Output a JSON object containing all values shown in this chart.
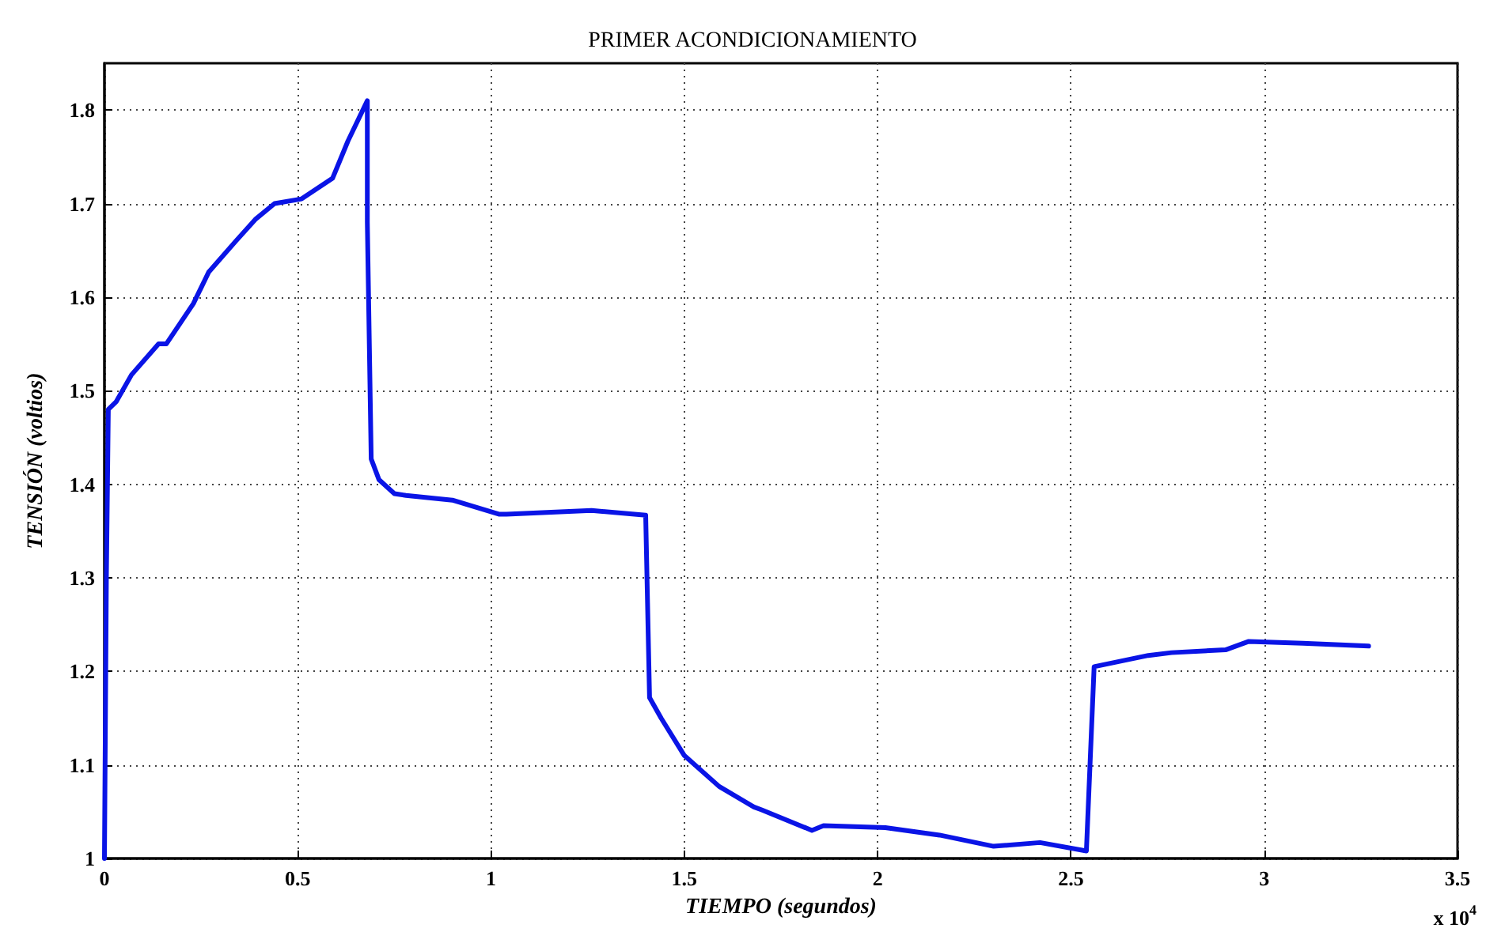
{
  "chart_data": {
    "type": "line",
    "title": "PRIMER ACONDICIONAMIENTO",
    "xlabel": "TIEMPO (segundos)",
    "ylabel": "TENSIÓN (voltios)",
    "annotations": [
      "x 10$^{4}$"
    ],
    "series": [
      {
        "color": "#0a14e6",
        "x": [
          0,
          0.005,
          0.01,
          0.03,
          0.07,
          0.14,
          0.16,
          0.23,
          0.27,
          0.34,
          0.39,
          0.44,
          0.51,
          0.59,
          0.63,
          0.68,
          0.68,
          0.69,
          0.71,
          0.75,
          0.78,
          0.9,
          1.02,
          1.04,
          1.26,
          1.4,
          1.41,
          1.44,
          1.5,
          1.59,
          1.68,
          1.7,
          1.83,
          1.86,
          2.02,
          2.16,
          2.3,
          2.42,
          2.54,
          2.56,
          2.7,
          2.76,
          2.9,
          2.96,
          3.1,
          3.27
        ],
        "values": [
          1.0,
          1.3,
          1.48,
          1.488,
          1.517,
          1.55,
          1.55,
          1.593,
          1.627,
          1.66,
          1.683,
          1.7,
          1.705,
          1.727,
          1.767,
          1.81,
          1.68,
          1.427,
          1.405,
          1.39,
          1.388,
          1.383,
          1.368,
          1.368,
          1.372,
          1.367,
          1.172,
          1.15,
          1.11,
          1.077,
          1.055,
          1.052,
          1.03,
          1.035,
          1.033,
          1.025,
          1.013,
          1.017,
          1.008,
          1.205,
          1.217,
          1.22,
          1.223,
          1.232,
          1.23,
          1.227
        ]
      }
    ],
    "xlim": [
      0,
      3.5
    ],
    "xticks": [
      0,
      0.5,
      1,
      1.5,
      2,
      2.5,
      3,
      3.5
    ],
    "ylim": [
      1,
      1.85
    ],
    "yticks": [
      1,
      1.1,
      1.2,
      1.3,
      1.4,
      1.5,
      1.6,
      1.7,
      1.8
    ],
    "grid": true,
    "marker": "none",
    "line_style": "solid"
  }
}
